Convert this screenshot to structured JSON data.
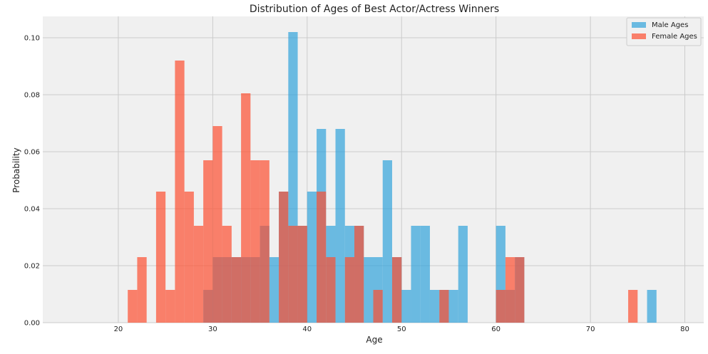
{
  "chart_data": {
    "type": "bar",
    "title": "Distribution of Ages of Best Actor/Actress Winners",
    "xlabel": "Age",
    "ylabel": "Probability",
    "xlim": [
      12,
      82
    ],
    "ylim": [
      0,
      0.1075
    ],
    "x_ticks": [
      20,
      30,
      40,
      50,
      60,
      70,
      80
    ],
    "y_ticks": [
      0.0,
      0.02,
      0.04,
      0.06,
      0.08,
      0.1
    ],
    "y_tick_labels": [
      "0.00",
      "0.02",
      "0.04",
      "0.06",
      "0.08",
      "0.10"
    ],
    "grid": true,
    "legend_position": "top-right",
    "bin_width": 1,
    "series": [
      {
        "name": "Male Ages",
        "color": "#30a2da",
        "bins": [
          [
            29,
            0.0115
          ],
          [
            30,
            0.023
          ],
          [
            31,
            0.023
          ],
          [
            32,
            0.023
          ],
          [
            33,
            0.023
          ],
          [
            34,
            0.023
          ],
          [
            35,
            0.034
          ],
          [
            36,
            0.023
          ],
          [
            37,
            0.046
          ],
          [
            38,
            0.102
          ],
          [
            39,
            0.034
          ],
          [
            40,
            0.046
          ],
          [
            41,
            0.068
          ],
          [
            42,
            0.034
          ],
          [
            43,
            0.068
          ],
          [
            44,
            0.034
          ],
          [
            45,
            0.034
          ],
          [
            46,
            0.023
          ],
          [
            47,
            0.023
          ],
          [
            48,
            0.057
          ],
          [
            49,
            0.023
          ],
          [
            50,
            0.0115
          ],
          [
            51,
            0.034
          ],
          [
            52,
            0.034
          ],
          [
            53,
            0.0115
          ],
          [
            54,
            0.0115
          ],
          [
            55,
            0.0115
          ],
          [
            56,
            0.034
          ],
          [
            60,
            0.034
          ],
          [
            61,
            0.0115
          ],
          [
            62,
            0.023
          ],
          [
            76,
            0.0115
          ]
        ]
      },
      {
        "name": "Female Ages",
        "color": "#fc4f30",
        "bins": [
          [
            21,
            0.0115
          ],
          [
            22,
            0.023
          ],
          [
            24,
            0.046
          ],
          [
            25,
            0.0115
          ],
          [
            26,
            0.092
          ],
          [
            27,
            0.046
          ],
          [
            28,
            0.034
          ],
          [
            29,
            0.057
          ],
          [
            30,
            0.069
          ],
          [
            31,
            0.034
          ],
          [
            32,
            0.023
          ],
          [
            33,
            0.0805
          ],
          [
            34,
            0.057
          ],
          [
            35,
            0.057
          ],
          [
            37,
            0.046
          ],
          [
            38,
            0.034
          ],
          [
            39,
            0.034
          ],
          [
            41,
            0.046
          ],
          [
            42,
            0.023
          ],
          [
            44,
            0.023
          ],
          [
            45,
            0.034
          ],
          [
            47,
            0.0115
          ],
          [
            49,
            0.023
          ],
          [
            54,
            0.0115
          ],
          [
            60,
            0.0115
          ],
          [
            61,
            0.023
          ],
          [
            62,
            0.023
          ],
          [
            74,
            0.0115
          ]
        ]
      }
    ]
  }
}
